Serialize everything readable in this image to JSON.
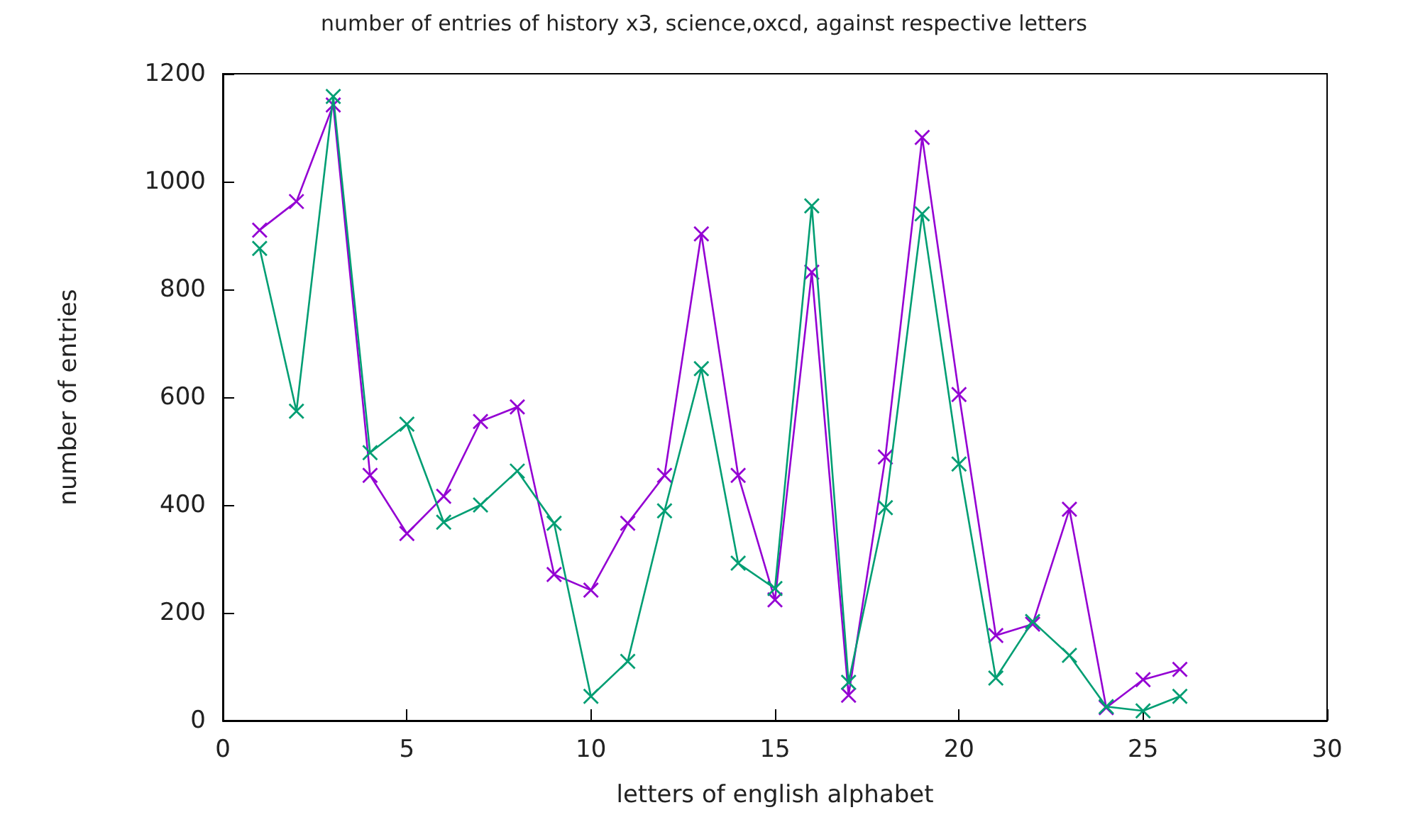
{
  "chart_data": {
    "type": "line",
    "title": "number of entries of history x3, science,oxcd, against respective letters",
    "xlabel": "letters of english alphabet",
    "ylabel": "number of entries",
    "x": [
      1,
      2,
      3,
      4,
      5,
      6,
      7,
      8,
      9,
      10,
      11,
      12,
      13,
      14,
      15,
      16,
      17,
      18,
      19,
      20,
      21,
      22,
      23,
      24,
      25,
      26
    ],
    "series": [
      {
        "color": "#9400d3",
        "values": [
          910,
          963,
          1142,
          455,
          347,
          416,
          555,
          582,
          271,
          242,
          366,
          455,
          903,
          455,
          224,
          832,
          47,
          489,
          1082,
          605,
          158,
          179,
          392,
          24,
          76,
          95
        ]
      },
      {
        "color": "#009e73",
        "values": [
          876,
          574,
          1158,
          497,
          550,
          368,
          400,
          463,
          366,
          45,
          110,
          389,
          653,
          292,
          245,
          955,
          71,
          395,
          940,
          476,
          79,
          184,
          121,
          26,
          18,
          45
        ]
      }
    ],
    "xlim": [
      0,
      30
    ],
    "xticks": [
      0,
      5,
      10,
      15,
      20,
      25,
      30
    ],
    "ylim": [
      0,
      1200
    ],
    "yticks": [
      0,
      200,
      400,
      600,
      800,
      1000,
      1200
    ],
    "grid": false,
    "marker": "cross"
  }
}
